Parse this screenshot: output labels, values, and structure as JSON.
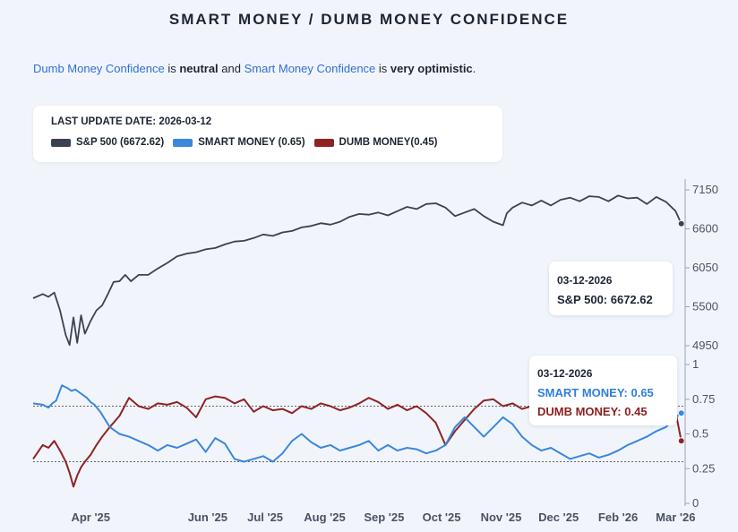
{
  "title": "SMART MONEY / DUMB MONEY CONFIDENCE",
  "summary": {
    "dumb_label": "Dumb Money Confidence",
    "is1": " is ",
    "dumb_state": "neutral",
    "and": " and ",
    "smart_label": "Smart Money Confidence",
    "is2": " is ",
    "smart_state": "very optimistic",
    "end": "."
  },
  "legend": {
    "last_update": "LAST UPDATE DATE: 2026-03-12",
    "items": [
      {
        "label": "S&P 500 (6672.62)",
        "color": "#3b4250"
      },
      {
        "label": "SMART MONEY (0.65)",
        "color": "#3a87dd"
      },
      {
        "label": "DUMB MONEY(0.45)",
        "color": "#8f2323"
      }
    ]
  },
  "tooltips": {
    "sp": {
      "date": "03-12-2026",
      "text": "S&P 500: 6672.62"
    },
    "conf": {
      "date": "03-12-2026",
      "smart": "SMART MONEY: 0.65",
      "dumb": "DUMB MONEY: 0.45"
    }
  },
  "chart_data": {
    "type": "line",
    "colors": {
      "sp": "#3b4250",
      "smart": "#3a87dd",
      "dumb": "#8f2323"
    },
    "x_ticks": [
      {
        "label": "Apr '25",
        "t": 30
      },
      {
        "label": "Jun '25",
        "t": 91
      },
      {
        "label": "Jul '25",
        "t": 121
      },
      {
        "label": "Aug '25",
        "t": 152
      },
      {
        "label": "Sep '25",
        "t": 183
      },
      {
        "label": "Oct '25",
        "t": 213
      },
      {
        "label": "Nov '25",
        "t": 244
      },
      {
        "label": "Dec '25",
        "t": 274
      },
      {
        "label": "Feb '26",
        "t": 305
      },
      {
        "label": "Mar '26",
        "t": 335
      }
    ],
    "x_range": [
      0,
      340
    ],
    "top_panel": {
      "ylim": [
        4950,
        7150
      ],
      "ticks": [
        "7150",
        "6600",
        "6050",
        "5500",
        "4950"
      ],
      "series": [
        {
          "name": "S&P 500",
          "x": [
            0,
            5,
            8,
            11,
            14,
            17,
            19,
            21,
            23,
            25,
            27,
            30,
            33,
            36,
            39,
            42,
            45,
            48,
            51,
            55,
            60,
            65,
            70,
            75,
            80,
            85,
            90,
            95,
            100,
            105,
            110,
            115,
            120,
            125,
            130,
            135,
            140,
            145,
            150,
            155,
            160,
            165,
            170,
            175,
            180,
            185,
            190,
            195,
            200,
            205,
            210,
            215,
            220,
            225,
            230,
            235,
            240,
            245,
            247,
            250,
            255,
            260,
            265,
            270,
            275,
            280,
            285,
            290,
            295,
            300,
            305,
            310,
            315,
            320,
            325,
            330,
            335,
            338
          ],
          "y": [
            5620,
            5680,
            5640,
            5700,
            5450,
            5100,
            4960,
            5350,
            4990,
            5380,
            5120,
            5300,
            5450,
            5520,
            5680,
            5850,
            5860,
            5950,
            5860,
            5950,
            5950,
            6040,
            6120,
            6210,
            6250,
            6270,
            6310,
            6330,
            6380,
            6420,
            6430,
            6470,
            6520,
            6500,
            6550,
            6570,
            6620,
            6640,
            6680,
            6660,
            6700,
            6770,
            6810,
            6800,
            6830,
            6790,
            6850,
            6910,
            6880,
            6950,
            6960,
            6900,
            6780,
            6830,
            6880,
            6780,
            6700,
            6650,
            6820,
            6900,
            6970,
            6930,
            7000,
            6930,
            7010,
            7040,
            6990,
            7060,
            7050,
            6990,
            7070,
            7030,
            7040,
            6950,
            7050,
            6980,
            6850,
            6672.62
          ]
        }
      ]
    },
    "bottom_panel": {
      "ylim": [
        0,
        1
      ],
      "ticks": [
        "1",
        "0.75",
        "0.5",
        "0.25",
        "0"
      ],
      "reference_lines": [
        0.7,
        0.3
      ],
      "series": [
        {
          "name": "SMART MONEY",
          "x": [
            0,
            5,
            8,
            10,
            12,
            15,
            18,
            20,
            22,
            24,
            26,
            28,
            30,
            32,
            35,
            40,
            45,
            50,
            55,
            60,
            65,
            70,
            75,
            80,
            85,
            90,
            95,
            100,
            105,
            110,
            115,
            120,
            125,
            130,
            135,
            140,
            145,
            150,
            155,
            160,
            165,
            170,
            175,
            180,
            185,
            190,
            195,
            200,
            205,
            210,
            215,
            220,
            225,
            230,
            235,
            240,
            245,
            250,
            255,
            260,
            265,
            270,
            275,
            280,
            285,
            290,
            295,
            300,
            305,
            310,
            315,
            320,
            325,
            330,
            335,
            338
          ],
          "y": [
            0.72,
            0.71,
            0.69,
            0.72,
            0.74,
            0.85,
            0.83,
            0.81,
            0.82,
            0.8,
            0.78,
            0.76,
            0.73,
            0.71,
            0.66,
            0.55,
            0.5,
            0.48,
            0.45,
            0.42,
            0.38,
            0.42,
            0.4,
            0.43,
            0.46,
            0.37,
            0.47,
            0.43,
            0.32,
            0.3,
            0.32,
            0.34,
            0.3,
            0.36,
            0.45,
            0.5,
            0.44,
            0.4,
            0.42,
            0.38,
            0.4,
            0.42,
            0.45,
            0.38,
            0.42,
            0.38,
            0.4,
            0.39,
            0.36,
            0.38,
            0.42,
            0.55,
            0.62,
            0.55,
            0.48,
            0.55,
            0.62,
            0.57,
            0.48,
            0.42,
            0.38,
            0.4,
            0.36,
            0.32,
            0.34,
            0.36,
            0.33,
            0.35,
            0.38,
            0.42,
            0.45,
            0.48,
            0.52,
            0.55,
            0.62,
            0.65
          ]
        },
        {
          "name": "DUMB MONEY",
          "x": [
            0,
            5,
            8,
            11,
            14,
            17,
            19,
            21,
            23,
            25,
            27,
            30,
            33,
            36,
            40,
            45,
            50,
            55,
            60,
            65,
            70,
            75,
            80,
            85,
            90,
            95,
            100,
            105,
            110,
            115,
            120,
            125,
            130,
            135,
            140,
            145,
            150,
            155,
            160,
            165,
            170,
            175,
            180,
            185,
            190,
            195,
            200,
            205,
            210,
            215,
            220,
            225,
            230,
            235,
            240,
            245,
            250,
            255,
            260,
            265,
            270,
            275,
            280,
            285,
            290,
            295,
            300,
            305,
            310,
            315,
            320,
            325,
            330,
            335,
            338
          ],
          "y": [
            0.32,
            0.42,
            0.4,
            0.45,
            0.38,
            0.3,
            0.22,
            0.12,
            0.2,
            0.26,
            0.3,
            0.35,
            0.42,
            0.48,
            0.55,
            0.63,
            0.76,
            0.7,
            0.68,
            0.72,
            0.71,
            0.73,
            0.69,
            0.62,
            0.75,
            0.77,
            0.76,
            0.72,
            0.75,
            0.66,
            0.7,
            0.67,
            0.68,
            0.65,
            0.7,
            0.68,
            0.72,
            0.7,
            0.67,
            0.69,
            0.72,
            0.76,
            0.73,
            0.68,
            0.71,
            0.67,
            0.7,
            0.65,
            0.58,
            0.42,
            0.52,
            0.6,
            0.68,
            0.74,
            0.75,
            0.7,
            0.72,
            0.68,
            0.7,
            0.76,
            0.73,
            0.7,
            0.76,
            0.74,
            0.78,
            0.77,
            0.72,
            0.74,
            0.78,
            0.73,
            0.76,
            0.74,
            0.7,
            0.66,
            0.45
          ]
        }
      ]
    }
  }
}
